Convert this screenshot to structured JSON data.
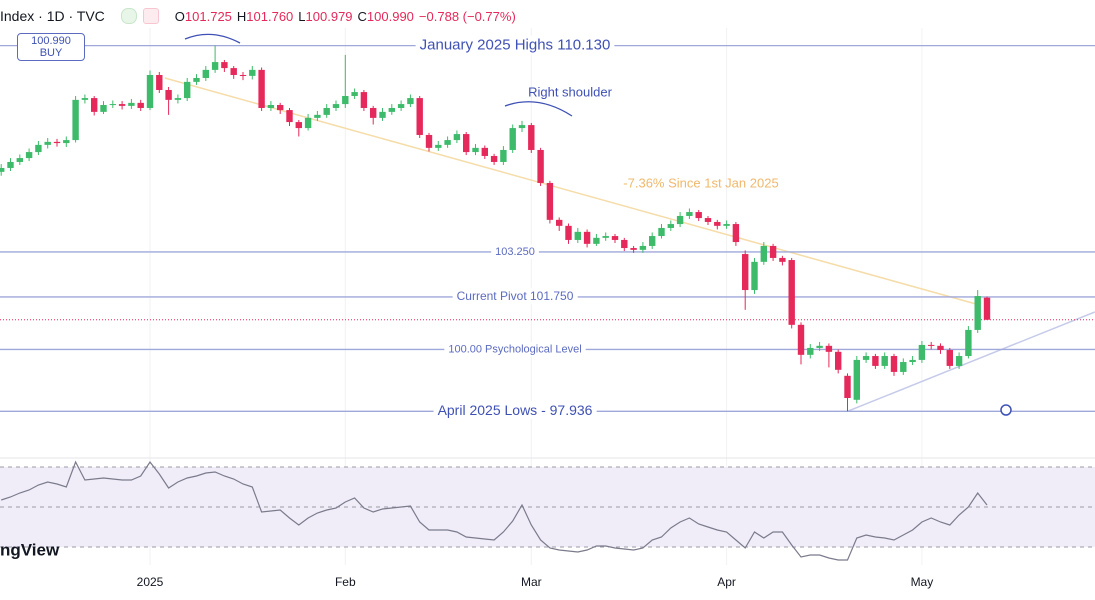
{
  "chart_data": {
    "type": "candlestick",
    "header": {
      "symbol": "Index · 1D · TVC",
      "ohlc": [
        {
          "label": "O",
          "value": "101.725"
        },
        {
          "label": "H",
          "value": "101.760"
        },
        {
          "label": "L",
          "value": "100.979"
        },
        {
          "label": "C",
          "value": "100.990"
        }
      ],
      "change": "−0.788 (−0.77%)"
    },
    "price_badge": {
      "price": "100.990",
      "side": "BUY"
    },
    "watermark": "ngView",
    "categories": [
      null,
      null,
      null,
      null,
      null,
      null,
      null,
      null,
      null,
      null,
      null,
      null,
      null,
      null,
      null,
      null,
      "2025",
      null,
      null,
      null,
      null,
      null,
      null,
      null,
      null,
      null,
      null,
      null,
      null,
      null,
      null,
      null,
      null,
      null,
      null,
      null,
      null,
      "Feb",
      null,
      null,
      null,
      null,
      null,
      null,
      null,
      null,
      null,
      null,
      null,
      null,
      null,
      null,
      null,
      null,
      null,
      null,
      null,
      "Mar",
      null,
      null,
      null,
      null,
      null,
      null,
      null,
      null,
      null,
      null,
      null,
      null,
      null,
      null,
      null,
      null,
      null,
      null,
      null,
      null,
      "Apr",
      null,
      null,
      null,
      null,
      null,
      null,
      null,
      null,
      null,
      null,
      null,
      null,
      null,
      null,
      null,
      null,
      null,
      null,
      null,
      null,
      "May",
      null,
      null,
      null,
      null,
      null,
      null,
      null
    ],
    "open": [
      105.92,
      106.05,
      106.25,
      106.38,
      106.58,
      106.82,
      106.92,
      106.88,
      106.98,
      108.32,
      108.38,
      107.92,
      108.15,
      108.18,
      108.12,
      108.22,
      108.05,
      109.15,
      108.65,
      108.32,
      108.38,
      108.92,
      109.05,
      109.32,
      109.58,
      109.38,
      109.15,
      109.12,
      109.32,
      108.05,
      108.15,
      107.98,
      107.58,
      107.38,
      107.72,
      107.82,
      108.05,
      108.18,
      108.45,
      108.58,
      108.05,
      107.72,
      107.92,
      108.05,
      108.18,
      108.38,
      107.15,
      106.72,
      106.82,
      106.98,
      107.18,
      106.58,
      106.72,
      106.45,
      106.25,
      106.65,
      107.38,
      107.48,
      106.65,
      105.55,
      104.32,
      104.12,
      103.65,
      103.92,
      103.52,
      103.72,
      103.78,
      103.65,
      103.38,
      103.32,
      103.45,
      103.78,
      104.05,
      104.18,
      104.45,
      104.58,
      104.38,
      104.25,
      104.12,
      104.18,
      103.18,
      101.98,
      102.92,
      103.45,
      103.05,
      102.98,
      100.82,
      99.82,
      100.05,
      100.12,
      99.92,
      99.12,
      98.32,
      99.65,
      99.78,
      99.45,
      99.78,
      99.25,
      99.58,
      99.65,
      100.15,
      100.12,
      99.98,
      99.45,
      99.78,
      100.65,
      101.725
    ],
    "high": [
      106.18,
      106.38,
      106.5,
      106.7,
      106.95,
      107.05,
      107.02,
      107.1,
      108.45,
      108.5,
      108.45,
      108.28,
      108.3,
      108.28,
      108.35,
      108.32,
      109.3,
      109.25,
      108.75,
      108.5,
      109.05,
      109.18,
      109.45,
      110.13,
      109.65,
      109.45,
      109.25,
      109.45,
      109.4,
      108.28,
      108.22,
      108.05,
      107.65,
      107.85,
      107.95,
      108.18,
      108.3,
      109.82,
      108.7,
      108.65,
      108.12,
      108.05,
      108.18,
      108.3,
      108.5,
      108.45,
      107.22,
      106.95,
      107.1,
      107.3,
      107.25,
      106.85,
      106.8,
      106.52,
      106.78,
      107.5,
      107.62,
      107.55,
      106.72,
      105.62,
      104.4,
      104.2,
      104.05,
      104.0,
      103.85,
      103.9,
      103.85,
      103.72,
      103.45,
      103.58,
      103.9,
      104.18,
      104.3,
      104.58,
      104.7,
      104.65,
      104.45,
      104.32,
      104.3,
      104.25,
      103.3,
      103.05,
      103.58,
      103.52,
      103.12,
      103.05,
      100.9,
      100.18,
      100.25,
      100.2,
      100.0,
      99.2,
      99.78,
      99.9,
      99.85,
      99.9,
      99.85,
      99.7,
      99.78,
      100.28,
      100.25,
      100.2,
      100.05,
      99.9,
      100.78,
      101.98,
      101.76
    ],
    "low": [
      105.79,
      105.95,
      106.15,
      106.28,
      106.48,
      106.7,
      106.76,
      106.75,
      106.9,
      108.2,
      107.8,
      107.85,
      108.05,
      108.0,
      108.02,
      107.95,
      107.98,
      108.55,
      107.82,
      108.2,
      108.28,
      108.82,
      108.95,
      109.22,
      109.25,
      109.02,
      108.98,
      109.0,
      107.95,
      107.95,
      107.85,
      107.45,
      107.1,
      107.3,
      107.62,
      107.72,
      107.95,
      108.05,
      108.35,
      107.95,
      107.5,
      107.62,
      107.82,
      107.95,
      108.08,
      107.05,
      106.6,
      106.62,
      106.72,
      106.88,
      106.48,
      106.48,
      106.35,
      106.15,
      106.15,
      106.55,
      107.25,
      106.55,
      105.45,
      104.2,
      103.95,
      103.52,
      103.55,
      103.4,
      103.45,
      103.62,
      103.55,
      103.28,
      103.22,
      103.22,
      103.35,
      103.7,
      103.95,
      104.08,
      104.35,
      104.28,
      104.15,
      104.0,
      104.02,
      103.45,
      101.32,
      101.85,
      102.82,
      102.95,
      102.8,
      100.7,
      99.5,
      99.7,
      99.95,
      99.4,
      99.2,
      97.94,
      98.2,
      99.55,
      99.35,
      99.35,
      99.12,
      99.15,
      99.48,
      99.55,
      100.0,
      99.85,
      99.35,
      99.35,
      99.7,
      100.55,
      100.979
    ],
    "close": [
      106.05,
      106.25,
      106.38,
      106.58,
      106.82,
      106.92,
      106.88,
      106.98,
      108.32,
      108.38,
      107.92,
      108.15,
      108.18,
      108.12,
      108.22,
      108.05,
      109.15,
      108.65,
      108.32,
      108.38,
      108.92,
      109.05,
      109.32,
      109.58,
      109.38,
      109.15,
      109.12,
      109.32,
      108.05,
      108.15,
      107.98,
      107.58,
      107.38,
      107.72,
      107.82,
      108.05,
      108.18,
      108.45,
      108.58,
      108.05,
      107.72,
      107.92,
      108.05,
      108.18,
      108.38,
      107.15,
      106.72,
      106.82,
      106.98,
      107.18,
      106.58,
      106.72,
      106.45,
      106.25,
      106.65,
      107.38,
      107.48,
      106.65,
      105.55,
      104.32,
      104.12,
      103.65,
      103.92,
      103.52,
      103.72,
      103.78,
      103.65,
      103.38,
      103.32,
      103.45,
      103.78,
      104.05,
      104.18,
      104.45,
      104.58,
      104.38,
      104.25,
      104.12,
      104.18,
      103.58,
      101.98,
      102.92,
      103.45,
      103.05,
      102.92,
      100.82,
      99.82,
      100.05,
      100.12,
      99.92,
      99.32,
      98.38,
      99.65,
      99.78,
      99.45,
      99.78,
      99.25,
      99.58,
      99.65,
      100.15,
      100.12,
      99.98,
      99.45,
      99.78,
      100.65,
      101.78,
      100.99
    ],
    "up_color": "#3dbb6a",
    "down_color": "#e5295a",
    "ylim": [
      96.48,
      111.65
    ],
    "levels": [
      {
        "value": 110.13,
        "label": "January 2025 Highs 110.130"
      },
      {
        "value": 103.25,
        "label": "103.250"
      },
      {
        "value": 101.75,
        "label": "Current Pivot 101.750"
      },
      {
        "value": 100,
        "label": "100.00 Psychological Level"
      },
      {
        "value": 97.936,
        "label": "April 2025 Lows - 97.936"
      }
    ],
    "level_color": "#9fa8da",
    "current_price": 100.99,
    "trendlines": [
      {
        "color": "#f5dca8",
        "points": [
          [
            17.6,
            109.05
          ],
          [
            105.2,
            101.48
          ]
        ]
      },
      {
        "color": "#c5cae9",
        "points": [
          [
            91,
            97.936
          ],
          [
            117.6,
            101.25
          ]
        ]
      }
    ],
    "annotations": [
      {
        "text": "Right shoulder",
        "color": "#3f51b5"
      },
      {
        "text": "-7.36% Since 1st Jan 2025",
        "color": "#f0b86b"
      }
    ],
    "rsi": {
      "values": [
        53.5,
        55,
        57,
        58.5,
        61,
        62.5,
        61.5,
        60,
        72.5,
        63.5,
        64,
        64.5,
        64,
        63.5,
        63.5,
        65.5,
        72.5,
        66.5,
        59.5,
        62.5,
        64.5,
        65.5,
        67,
        67.5,
        65.5,
        64,
        61.5,
        60,
        47.5,
        48,
        48.5,
        44.5,
        41,
        44.5,
        47,
        48.5,
        49.5,
        52.5,
        54.5,
        49.5,
        47.5,
        49,
        49.5,
        50,
        50.5,
        42.5,
        38.5,
        38.5,
        38.5,
        37.5,
        35,
        34.5,
        34,
        33.5,
        37.5,
        43,
        51,
        41,
        33.5,
        29.5,
        28.5,
        28,
        27.5,
        28.5,
        30.5,
        30.5,
        29.5,
        29,
        28.5,
        29.5,
        33.5,
        35,
        39.5,
        42.5,
        44.5,
        41.5,
        40,
        38.5,
        37.5,
        33.5,
        29.5,
        37.5,
        34.5,
        37.5,
        37.5,
        31,
        25,
        26,
        26,
        24.5,
        23.5,
        23.5,
        34.5,
        36,
        35,
        34.5,
        33.5,
        36,
        38.5,
        42.5,
        44.5,
        42.5,
        41,
        46,
        50,
        57,
        51
      ],
      "ylim": [
        21,
        73.5
      ],
      "levels": [
        70,
        50,
        30
      ],
      "color": "#7b7b8c"
    }
  }
}
